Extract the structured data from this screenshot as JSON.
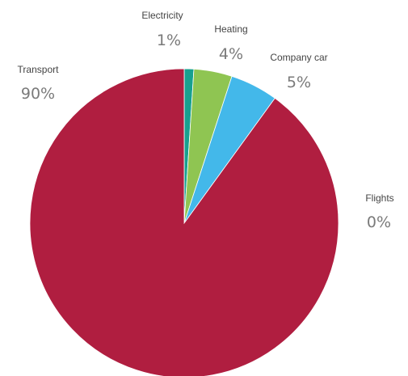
{
  "chart_data": {
    "type": "pie",
    "title": "",
    "start_angle_deg": 0,
    "direction": "clockwise",
    "slices": [
      {
        "label": "Electricity",
        "value": 1,
        "display": "1%",
        "color": "#17a08f"
      },
      {
        "label": "Heating",
        "value": 4,
        "display": "4%",
        "color": "#8fc552"
      },
      {
        "label": "Company car",
        "value": 5,
        "display": "5%",
        "color": "#43b8ea"
      },
      {
        "label": "Flights",
        "value": 0,
        "display": "0%",
        "color": "#f0a020"
      },
      {
        "label": "Transport",
        "value": 90,
        "display": "90%",
        "color": "#b01e40"
      }
    ]
  }
}
